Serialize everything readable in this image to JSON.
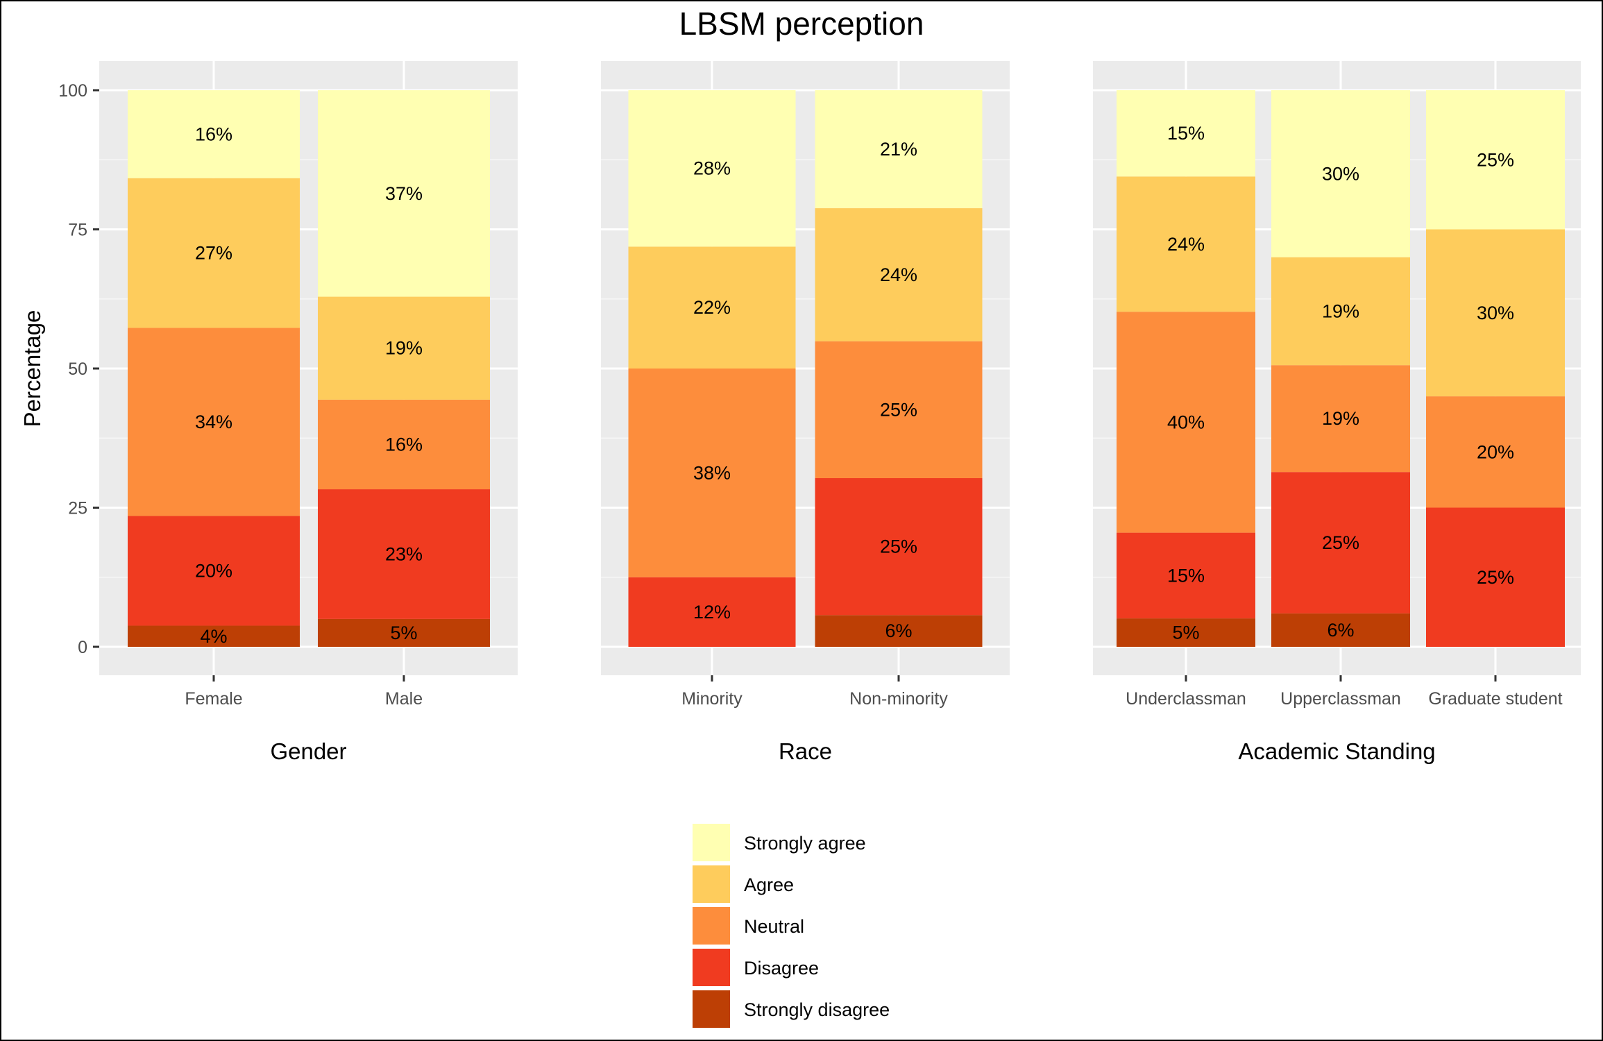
{
  "chart_data": {
    "type": "bar",
    "stacked": true,
    "title": "LBSM perception",
    "ylabel": "Percentage",
    "ylim": [
      0,
      100
    ],
    "y_ticks": [
      0,
      25,
      50,
      75,
      100
    ],
    "grid": true,
    "legend_position": "bottom",
    "legend": [
      {
        "name": "Strongly agree",
        "color": "#FFFFB2"
      },
      {
        "name": "Agree",
        "color": "#FECC5C"
      },
      {
        "name": "Neutral",
        "color": "#FD8D3C"
      },
      {
        "name": "Disagree",
        "color": "#F03B20"
      },
      {
        "name": "Strongly disagree",
        "color": "#BD3F05"
      }
    ],
    "panels": [
      {
        "xlabel": "Gender",
        "categories": [
          "Female",
          "Male"
        ],
        "bars": [
          {
            "category": "Female",
            "segments": [
              {
                "level": "Strongly disagree",
                "value": 3.8,
                "label": "4%"
              },
              {
                "level": "Disagree",
                "value": 19.7,
                "label": "20%"
              },
              {
                "level": "Neutral",
                "value": 33.8,
                "label": "34%"
              },
              {
                "level": "Agree",
                "value": 26.9,
                "label": "27%"
              },
              {
                "level": "Strongly agree",
                "value": 15.8,
                "label": "16%"
              }
            ]
          },
          {
            "category": "Male",
            "segments": [
              {
                "level": "Strongly disagree",
                "value": 5.0,
                "label": "5%"
              },
              {
                "level": "Disagree",
                "value": 23.3,
                "label": "23%"
              },
              {
                "level": "Neutral",
                "value": 16.1,
                "label": "16%"
              },
              {
                "level": "Agree",
                "value": 18.5,
                "label": "19%"
              },
              {
                "level": "Strongly agree",
                "value": 37.1,
                "label": "37%"
              }
            ]
          }
        ]
      },
      {
        "xlabel": "Race",
        "categories": [
          "Minority",
          "Non-minority"
        ],
        "bars": [
          {
            "category": "Minority",
            "segments": [
              {
                "level": "Disagree",
                "value": 12.5,
                "label": "12%"
              },
              {
                "level": "Neutral",
                "value": 37.5,
                "label": "38%"
              },
              {
                "level": "Agree",
                "value": 21.9,
                "label": "22%"
              },
              {
                "level": "Strongly agree",
                "value": 28.1,
                "label": "28%"
              }
            ]
          },
          {
            "category": "Non-minority",
            "segments": [
              {
                "level": "Strongly disagree",
                "value": 5.7,
                "label": "6%"
              },
              {
                "level": "Disagree",
                "value": 24.6,
                "label": "25%"
              },
              {
                "level": "Neutral",
                "value": 24.6,
                "label": "25%"
              },
              {
                "level": "Agree",
                "value": 23.9,
                "label": "24%"
              },
              {
                "level": "Strongly agree",
                "value": 21.2,
                "label": "21%"
              }
            ]
          }
        ]
      },
      {
        "xlabel": "Academic Standing",
        "categories": [
          "Underclassman",
          "Upperclassman",
          "Graduate student"
        ],
        "bars": [
          {
            "category": "Underclassman",
            "segments": [
              {
                "level": "Strongly disagree",
                "value": 5.1,
                "label": "5%"
              },
              {
                "level": "Disagree",
                "value": 15.4,
                "label": "15%"
              },
              {
                "level": "Neutral",
                "value": 39.7,
                "label": "40%"
              },
              {
                "level": "Agree",
                "value": 24.3,
                "label": "24%"
              },
              {
                "level": "Strongly agree",
                "value": 15.5,
                "label": "15%"
              }
            ]
          },
          {
            "category": "Upperclassman",
            "segments": [
              {
                "level": "Strongly disagree",
                "value": 6.0,
                "label": "6%"
              },
              {
                "level": "Disagree",
                "value": 25.4,
                "label": "25%"
              },
              {
                "level": "Neutral",
                "value": 19.2,
                "label": "19%"
              },
              {
                "level": "Agree",
                "value": 19.4,
                "label": "19%"
              },
              {
                "level": "Strongly agree",
                "value": 30.0,
                "label": "30%"
              }
            ]
          },
          {
            "category": "Graduate student",
            "segments": [
              {
                "level": "Disagree",
                "value": 25.0,
                "label": "25%"
              },
              {
                "level": "Neutral",
                "value": 20.0,
                "label": "20%"
              },
              {
                "level": "Agree",
                "value": 30.0,
                "label": "30%"
              },
              {
                "level": "Strongly agree",
                "value": 25.0,
                "label": "25%"
              }
            ]
          }
        ]
      }
    ]
  }
}
